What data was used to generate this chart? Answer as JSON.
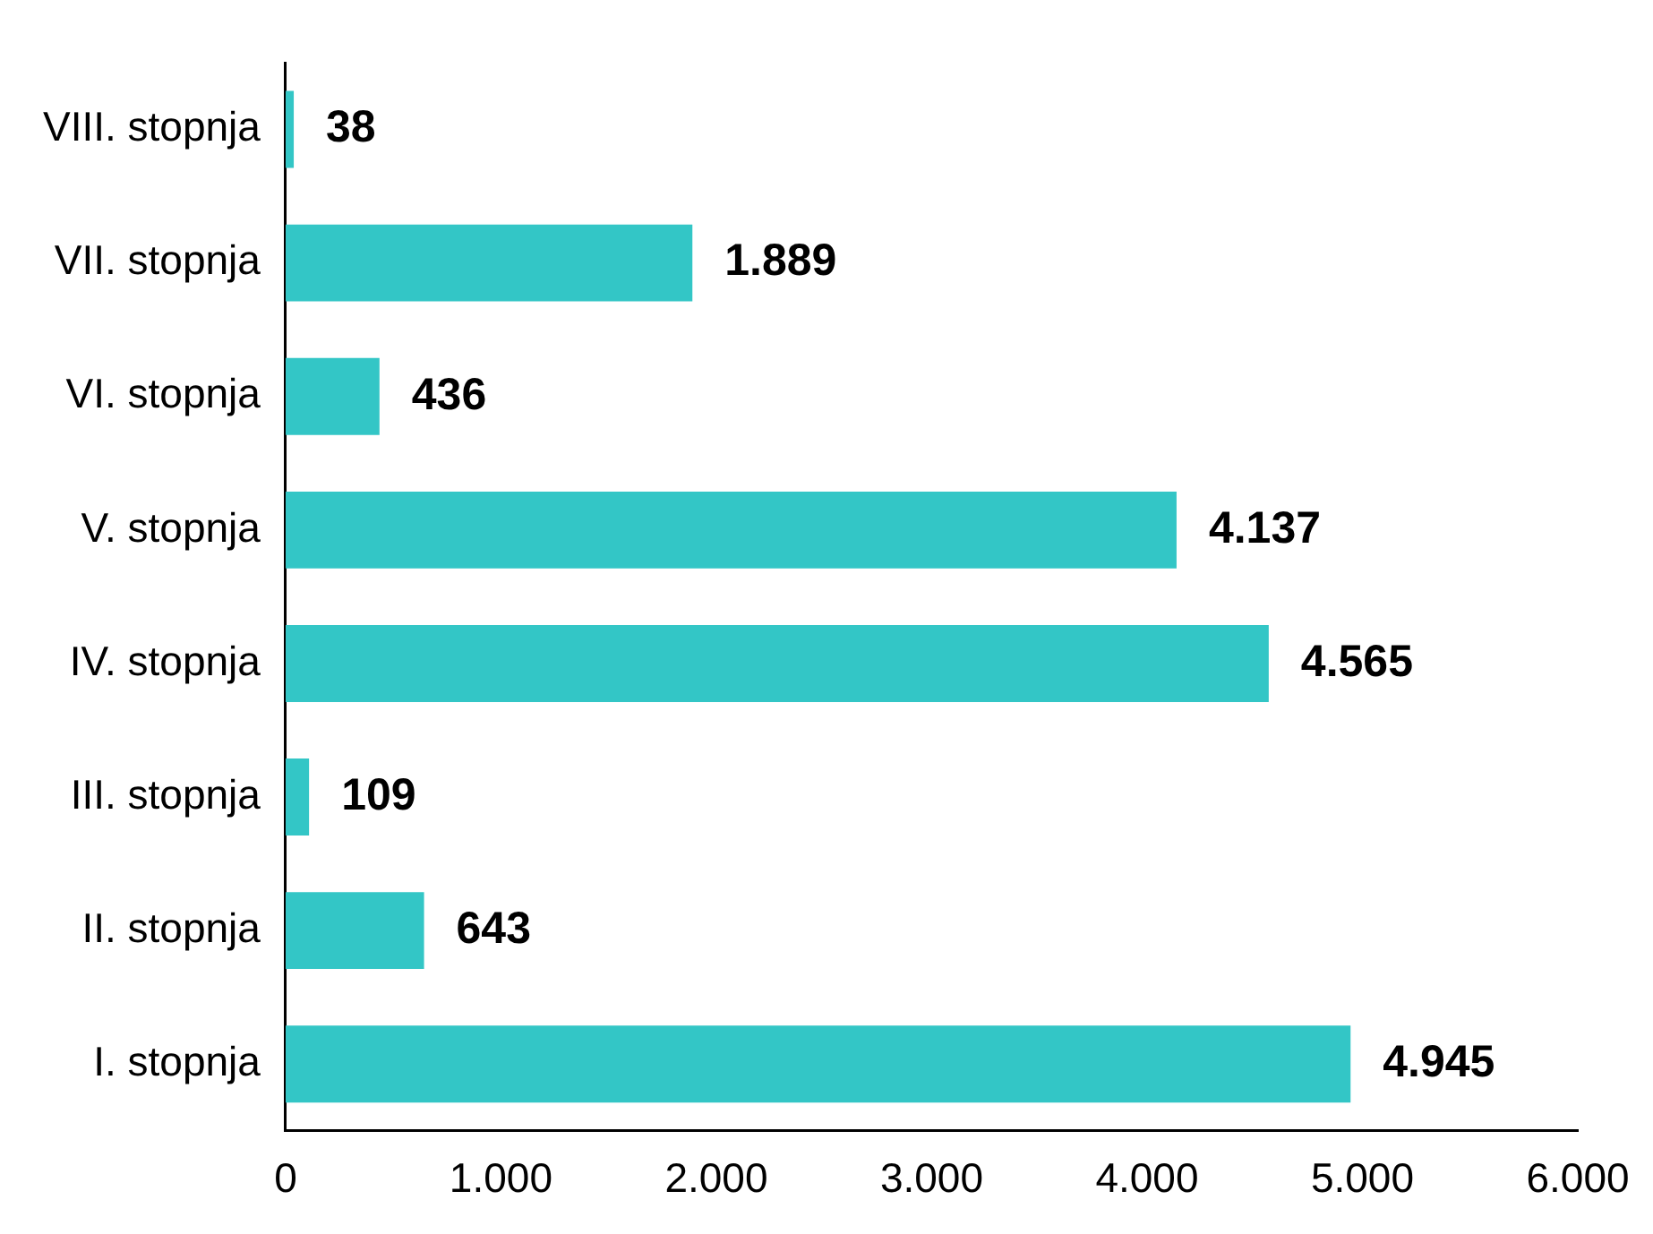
{
  "chart_data": {
    "type": "bar",
    "orientation": "horizontal",
    "categories": [
      "VIII. stopnja",
      "VII. stopnja",
      "VI. stopnja",
      "V. stopnja",
      "IV. stopnja",
      "III. stopnja",
      "II. stopnja",
      "I. stopnja"
    ],
    "values": [
      38,
      1889,
      436,
      4137,
      4565,
      109,
      643,
      4945
    ],
    "value_labels": [
      "38",
      "1.889",
      "436",
      "4.137",
      "4.565",
      "109",
      "643",
      "4.945"
    ],
    "color": "#33c6c6",
    "xlim": [
      0,
      6000
    ],
    "xticks": [
      0,
      {
        "value": 1000,
        "label": "1.000"
      },
      {
        "value": 2000,
        "label": "2.000"
      },
      {
        "value": 3000,
        "label": "3.000"
      },
      {
        "value": 4000,
        "label": "4.000"
      },
      {
        "value": 5000,
        "label": "5.000"
      },
      {
        "value": 6000,
        "label": "6.000"
      }
    ],
    "grid": false,
    "legend": false
  }
}
